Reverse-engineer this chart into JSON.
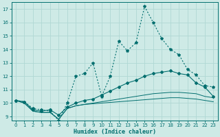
{
  "xlabel": "Humidex (Indice chaleur)",
  "xlim": [
    -0.5,
    23.5
  ],
  "ylim": [
    8.7,
    17.5
  ],
  "xticks": [
    0,
    1,
    2,
    3,
    4,
    5,
    6,
    7,
    8,
    9,
    10,
    11,
    12,
    13,
    14,
    15,
    16,
    17,
    18,
    19,
    20,
    21,
    22,
    23
  ],
  "yticks": [
    9,
    10,
    11,
    12,
    13,
    14,
    15,
    16,
    17
  ],
  "bg_color": "#ceeae6",
  "grid_color": "#b0d8d4",
  "line_color": "#006e6e",
  "line1": [
    10.2,
    10.1,
    9.6,
    9.5,
    9.4,
    8.7,
    10.0,
    12.0,
    12.2,
    13.0,
    10.5,
    12.0,
    14.6,
    13.9,
    14.5,
    17.2,
    16.0,
    14.8,
    14.0,
    13.6,
    12.5,
    12.1,
    11.3,
    11.2
  ],
  "line1_markers": [
    0,
    1,
    2,
    3,
    4,
    5,
    6,
    7,
    8,
    9,
    10,
    11,
    12,
    13,
    14,
    15,
    16,
    17,
    18,
    19,
    20,
    21,
    22,
    23
  ],
  "line2": [
    10.2,
    10.1,
    9.5,
    9.4,
    9.5,
    9.1,
    9.7,
    10.0,
    10.2,
    10.3,
    10.6,
    10.9,
    11.2,
    11.5,
    11.7,
    12.0,
    12.2,
    12.3,
    12.4,
    12.2,
    12.1,
    11.5,
    11.2,
    10.5
  ],
  "line2_markers": [
    0,
    1,
    2,
    3,
    4,
    5,
    6,
    7,
    8,
    9,
    10,
    11,
    12,
    13,
    14,
    15,
    16,
    17,
    18,
    19,
    20,
    21,
    22,
    23
  ],
  "line3": [
    10.2,
    10.0,
    9.4,
    9.3,
    9.3,
    8.8,
    9.6,
    9.8,
    9.9,
    10.0,
    10.1,
    10.2,
    10.3,
    10.4,
    10.5,
    10.6,
    10.7,
    10.75,
    10.8,
    10.8,
    10.75,
    10.7,
    10.5,
    10.4
  ],
  "line4": [
    10.2,
    10.0,
    9.4,
    9.3,
    9.3,
    8.8,
    9.6,
    9.8,
    9.9,
    9.95,
    10.0,
    10.05,
    10.1,
    10.15,
    10.2,
    10.25,
    10.3,
    10.35,
    10.4,
    10.4,
    10.35,
    10.3,
    10.2,
    10.1
  ]
}
